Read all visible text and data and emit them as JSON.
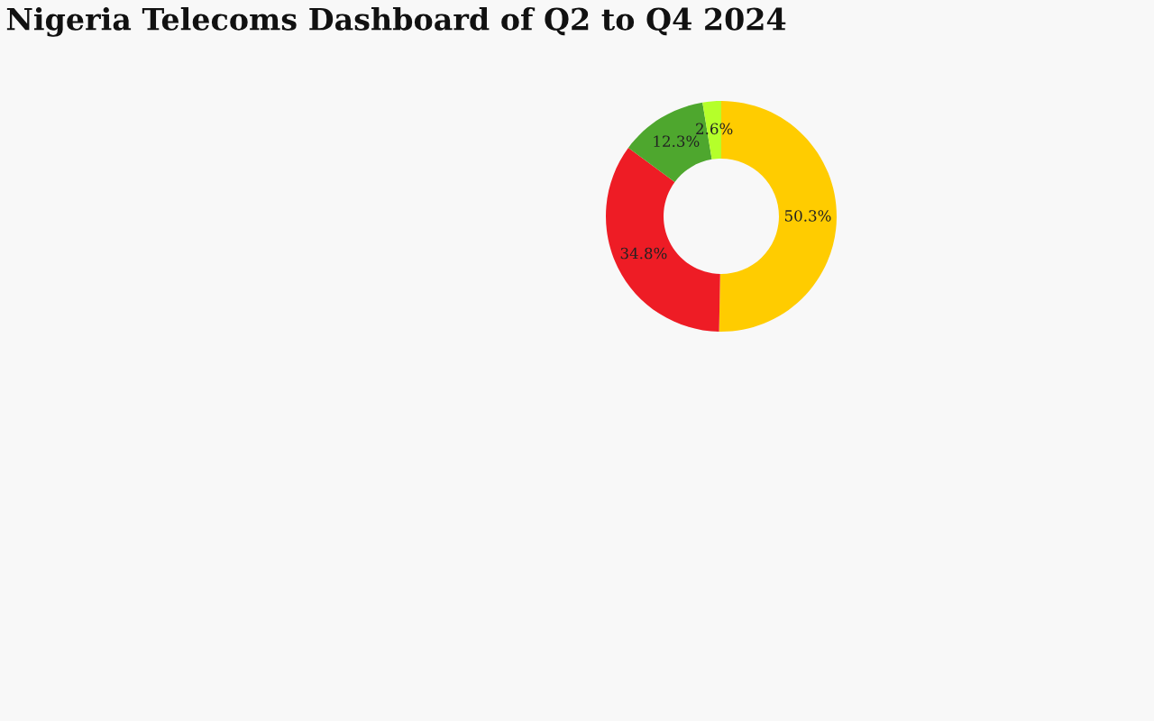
{
  "chart_data": {
    "type": "donut",
    "title": "Nigeria Telecoms Dashboard of Q2 to Q4 2024",
    "categories": [
      null,
      null,
      null,
      null
    ],
    "values": [
      50.3,
      34.8,
      12.3,
      2.6
    ],
    "value_labels": [
      "50.3%",
      "34.8%",
      "12.3%",
      "2.6%"
    ],
    "colors": [
      "#ffcc00",
      "#ee1c25",
      "#4ea72e",
      "#b5ff2a"
    ]
  }
}
